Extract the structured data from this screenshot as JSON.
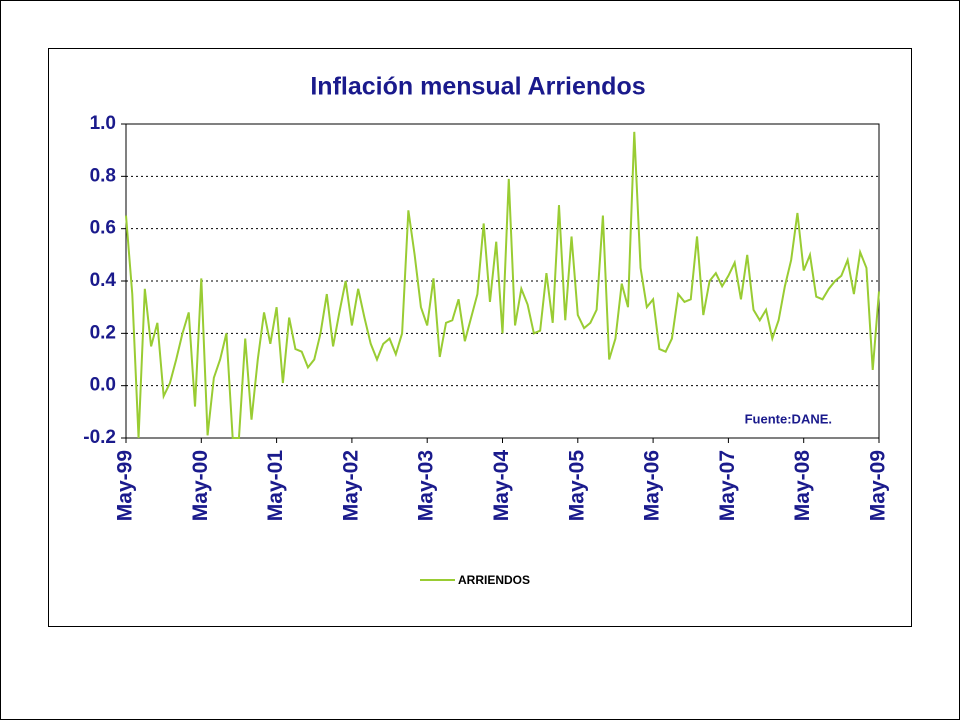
{
  "chart_data": {
    "type": "line",
    "title": "Inflación mensual Arriendos",
    "annotation": "Fuente:DANE.",
    "categories": [
      "May-99",
      null,
      null,
      null,
      null,
      null,
      null,
      null,
      null,
      null,
      null,
      null,
      "May-00",
      null,
      null,
      null,
      null,
      null,
      null,
      null,
      null,
      null,
      null,
      null,
      "May-01",
      null,
      null,
      null,
      null,
      null,
      null,
      null,
      null,
      null,
      null,
      null,
      "May-02",
      null,
      null,
      null,
      null,
      null,
      null,
      null,
      null,
      null,
      null,
      null,
      "May-03",
      null,
      null,
      null,
      null,
      null,
      null,
      null,
      null,
      null,
      null,
      null,
      "May-04",
      null,
      null,
      null,
      null,
      null,
      null,
      null,
      null,
      null,
      null,
      null,
      "May-05",
      null,
      null,
      null,
      null,
      null,
      null,
      null,
      null,
      null,
      null,
      null,
      "May-06",
      null,
      null,
      null,
      null,
      null,
      null,
      null,
      null,
      null,
      null,
      null,
      "May-07",
      null,
      null,
      null,
      null,
      null,
      null,
      null,
      null,
      null,
      null,
      null,
      "May-08",
      null,
      null,
      null,
      null,
      null,
      null,
      null,
      null,
      null,
      null,
      null,
      "May-09"
    ],
    "series": [
      {
        "name": "ARRIENDOS",
        "color": "#99cc33",
        "values": [
          0.65,
          0.35,
          -0.2,
          0.37,
          0.15,
          0.24,
          -0.04,
          0.01,
          0.1,
          0.2,
          0.28,
          -0.08,
          0.41,
          -0.19,
          0.03,
          0.1,
          0.2,
          -0.2,
          -0.2,
          0.18,
          -0.13,
          0.1,
          0.28,
          0.16,
          0.3,
          0.01,
          0.26,
          0.14,
          0.13,
          0.07,
          0.1,
          0.2,
          0.35,
          0.15,
          0.28,
          0.4,
          0.23,
          0.37,
          0.26,
          0.16,
          0.1,
          0.16,
          0.18,
          0.12,
          0.2,
          0.67,
          0.5,
          0.3,
          0.23,
          0.41,
          0.11,
          0.24,
          0.25,
          0.33,
          0.17,
          0.26,
          0.35,
          0.62,
          0.32,
          0.55,
          0.2,
          0.79,
          0.23,
          0.37,
          0.31,
          0.2,
          0.21,
          0.43,
          0.24,
          0.69,
          0.25,
          0.57,
          0.27,
          0.22,
          0.24,
          0.29,
          0.65,
          0.1,
          0.18,
          0.39,
          0.3,
          0.97,
          0.45,
          0.3,
          0.33,
          0.14,
          0.13,
          0.18,
          0.35,
          0.32,
          0.33,
          0.57,
          0.27,
          0.4,
          0.43,
          0.38,
          0.42,
          0.47,
          0.33,
          0.5,
          0.29,
          0.25,
          0.29,
          0.18,
          0.25,
          0.38,
          0.48,
          0.66,
          0.44,
          0.5,
          0.34,
          0.33,
          0.37,
          0.4,
          0.42,
          0.48,
          0.35,
          0.51,
          0.45,
          0.06,
          0.36
        ]
      }
    ],
    "ylim": [
      -0.2,
      1.0
    ],
    "yticks": [
      -0.2,
      {
        "value": 0,
        "label": "0.0"
      },
      0.2,
      0.4,
      0.6,
      0.8,
      {
        "value": 1,
        "label": "1.0"
      }
    ],
    "grid": true
  }
}
